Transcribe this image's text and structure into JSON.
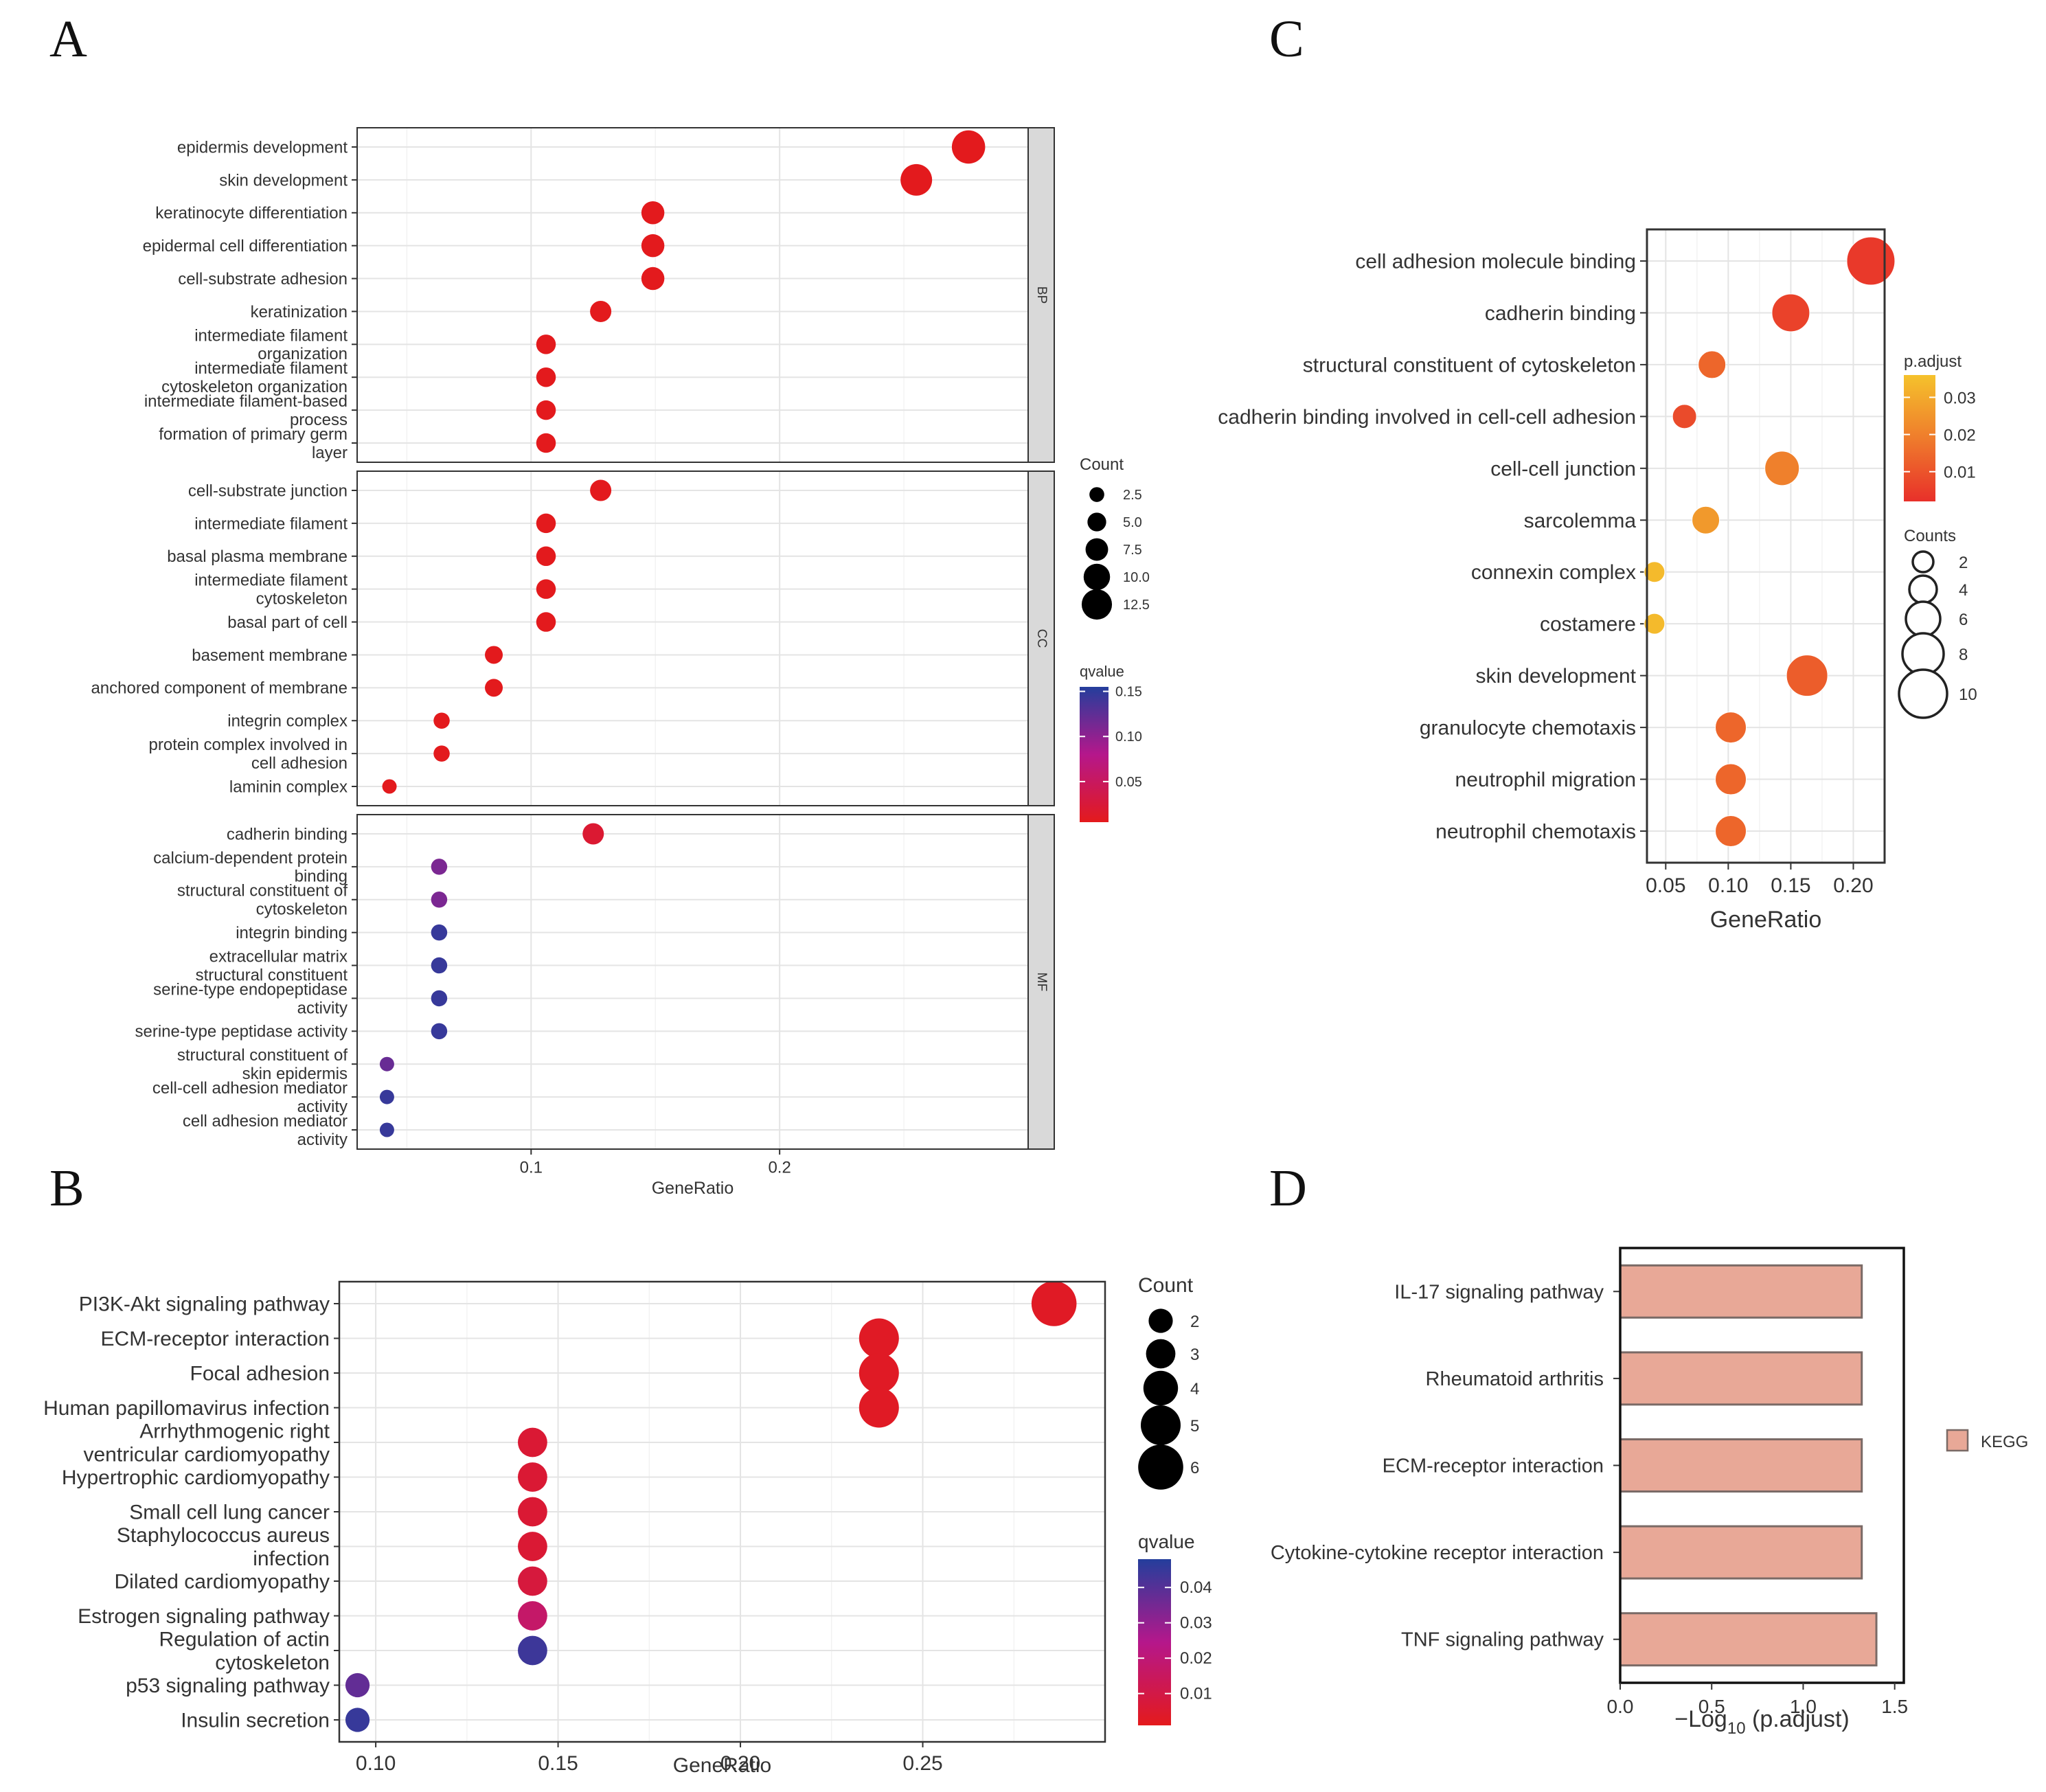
{
  "panels": {
    "A": "A",
    "B": "B",
    "C": "C",
    "D": "D"
  },
  "chart_data": [
    {
      "id": "A",
      "type": "scatter",
      "subtype": "dotplot-faceted",
      "xlabel": "GeneRatio",
      "xlim": [
        0.03,
        0.3
      ],
      "xticks": [
        "0.1",
        "0.2"
      ],
      "xtick_values": [
        0.1,
        0.2
      ],
      "facets": [
        {
          "name": "BP",
          "items": [
            {
              "term": [
                "epidermis development"
              ],
              "x": 0.276,
              "count": 13,
              "q": 0.006
            },
            {
              "term": [
                "skin development"
              ],
              "x": 0.255,
              "count": 12,
              "q": 0.006
            },
            {
              "term": [
                "keratinocyte differentiation"
              ],
              "x": 0.149,
              "count": 7,
              "q": 0.006
            },
            {
              "term": [
                "epidermal cell differentiation"
              ],
              "x": 0.149,
              "count": 7,
              "q": 0.006
            },
            {
              "term": [
                "cell-substrate adhesion"
              ],
              "x": 0.149,
              "count": 7,
              "q": 0.006
            },
            {
              "term": [
                "keratinization"
              ],
              "x": 0.128,
              "count": 6,
              "q": 0.006
            },
            {
              "term": [
                "intermediate filament",
                "organization"
              ],
              "x": 0.106,
              "count": 5,
              "q": 0.006
            },
            {
              "term": [
                "intermediate filament",
                "cytoskeleton organization"
              ],
              "x": 0.106,
              "count": 5,
              "q": 0.006
            },
            {
              "term": [
                "intermediate filament-based",
                "process"
              ],
              "x": 0.106,
              "count": 5,
              "q": 0.006
            },
            {
              "term": [
                "formation of primary germ",
                "layer"
              ],
              "x": 0.106,
              "count": 5,
              "q": 0.006
            }
          ]
        },
        {
          "name": "CC",
          "items": [
            {
              "term": [
                "cell-substrate junction"
              ],
              "x": 0.128,
              "count": 6,
              "q": 0.006
            },
            {
              "term": [
                "intermediate filament"
              ],
              "x": 0.106,
              "count": 5,
              "q": 0.006
            },
            {
              "term": [
                "basal plasma membrane"
              ],
              "x": 0.106,
              "count": 5,
              "q": 0.006
            },
            {
              "term": [
                "intermediate filament",
                "cytoskeleton"
              ],
              "x": 0.106,
              "count": 5,
              "q": 0.006
            },
            {
              "term": [
                "basal part of cell"
              ],
              "x": 0.106,
              "count": 5,
              "q": 0.006
            },
            {
              "term": [
                "basement membrane"
              ],
              "x": 0.085,
              "count": 4,
              "q": 0.006
            },
            {
              "term": [
                "anchored component of membrane"
              ],
              "x": 0.085,
              "count": 4,
              "q": 0.006
            },
            {
              "term": [
                "integrin complex"
              ],
              "x": 0.064,
              "count": 3,
              "q": 0.006
            },
            {
              "term": [
                "protein complex involved in",
                "cell adhesion"
              ],
              "x": 0.064,
              "count": 3,
              "q": 0.006
            },
            {
              "term": [
                "laminin complex"
              ],
              "x": 0.043,
              "count": 2,
              "q": 0.006
            }
          ]
        },
        {
          "name": "MF",
          "items": [
            {
              "term": [
                "cadherin binding"
              ],
              "x": 0.125,
              "count": 6,
              "q": 0.02
            },
            {
              "term": [
                "calcium-dependent protein",
                "binding"
              ],
              "x": 0.063,
              "count": 3,
              "q": 0.11
            },
            {
              "term": [
                "structural constituent of",
                "cytoskeleton"
              ],
              "x": 0.063,
              "count": 3,
              "q": 0.11
            },
            {
              "term": [
                "integrin binding"
              ],
              "x": 0.063,
              "count": 3,
              "q": 0.145
            },
            {
              "term": [
                "extracellular matrix",
                "structural constituent"
              ],
              "x": 0.063,
              "count": 3,
              "q": 0.145
            },
            {
              "term": [
                "serine-type endopeptidase",
                "activity"
              ],
              "x": 0.063,
              "count": 3,
              "q": 0.145
            },
            {
              "term": [
                "serine-type peptidase activity"
              ],
              "x": 0.063,
              "count": 3,
              "q": 0.145
            },
            {
              "term": [
                "structural constituent of",
                "skin epidermis"
              ],
              "x": 0.042,
              "count": 2,
              "q": 0.12
            },
            {
              "term": [
                "cell-cell adhesion mediator",
                "activity"
              ],
              "x": 0.042,
              "count": 2,
              "q": 0.145
            },
            {
              "term": [
                "cell adhesion mediator",
                "activity"
              ],
              "x": 0.042,
              "count": 2,
              "q": 0.145
            }
          ]
        }
      ],
      "legend_count": {
        "title": "Count",
        "labels": [
          "2.5",
          "5.0",
          "7.5",
          "10.0",
          "12.5"
        ],
        "values": [
          2.5,
          5.0,
          7.5,
          10.0,
          12.5
        ]
      },
      "legend_color": {
        "title": "qvalue",
        "labels": [
          "0.15",
          "0.10",
          "0.05"
        ],
        "values": [
          0.15,
          0.1,
          0.05
        ],
        "range": [
          0.005,
          0.155
        ]
      }
    },
    {
      "id": "B",
      "type": "scatter",
      "subtype": "dotplot",
      "xlabel": "GeneRatio",
      "xlim": [
        0.09,
        0.3
      ],
      "xticks": [
        "0.10",
        "0.15",
        "0.20",
        "0.25"
      ],
      "xtick_values": [
        0.1,
        0.15,
        0.2,
        0.25
      ],
      "items": [
        {
          "term": [
            "PI3K-Akt signaling pathway"
          ],
          "x": 0.286,
          "count": 6,
          "q": 0.003
        },
        {
          "term": [
            "ECM-receptor interaction"
          ],
          "x": 0.238,
          "count": 5,
          "q": 0.003
        },
        {
          "term": [
            "Focal adhesion"
          ],
          "x": 0.238,
          "count": 5,
          "q": 0.003
        },
        {
          "term": [
            "Human papillomavirus infection"
          ],
          "x": 0.238,
          "count": 5,
          "q": 0.003
        },
        {
          "term": [
            "Arrhythmogenic right",
            "ventricular cardiomyopathy"
          ],
          "x": 0.143,
          "count": 3,
          "q": 0.006
        },
        {
          "term": [
            "Hypertrophic cardiomyopathy"
          ],
          "x": 0.143,
          "count": 3,
          "q": 0.006
        },
        {
          "term": [
            "Small cell lung cancer"
          ],
          "x": 0.143,
          "count": 3,
          "q": 0.006
        },
        {
          "term": [
            "Staphylococcus aureus",
            "infection"
          ],
          "x": 0.143,
          "count": 3,
          "q": 0.006
        },
        {
          "term": [
            "Dilated cardiomyopathy"
          ],
          "x": 0.143,
          "count": 3,
          "q": 0.008
        },
        {
          "term": [
            "Estrogen signaling pathway"
          ],
          "x": 0.143,
          "count": 3,
          "q": 0.017
        },
        {
          "term": [
            "Regulation of actin",
            "cytoskeleton"
          ],
          "x": 0.143,
          "count": 3,
          "q": 0.044
        },
        {
          "term": [
            "p53 signaling pathway"
          ],
          "x": 0.095,
          "count": 2,
          "q": 0.038
        },
        {
          "term": [
            "Insulin secretion"
          ],
          "x": 0.095,
          "count": 2,
          "q": 0.045
        }
      ],
      "legend_count": {
        "title": "Count",
        "labels": [
          "2",
          "3",
          "4",
          "5",
          "6"
        ],
        "values": [
          2,
          3,
          4,
          5,
          6
        ]
      },
      "legend_color": {
        "title": "qvalue",
        "labels": [
          "0.04",
          "0.03",
          "0.02",
          "0.01"
        ],
        "values": [
          0.04,
          0.03,
          0.02,
          0.01
        ],
        "range": [
          0.001,
          0.048
        ]
      }
    },
    {
      "id": "C",
      "type": "scatter",
      "subtype": "dotplot",
      "xlabel": "GeneRatio",
      "xlim": [
        0.035,
        0.225
      ],
      "xticks": [
        "0.05",
        "0.10",
        "0.15",
        "0.20"
      ],
      "xtick_values": [
        0.05,
        0.1,
        0.15,
        0.2
      ],
      "items": [
        {
          "term": [
            "cell adhesion molecule binding"
          ],
          "x": 0.214,
          "count": 10,
          "p": 0.004
        },
        {
          "term": [
            "cadherin binding"
          ],
          "x": 0.15,
          "count": 7,
          "p": 0.006
        },
        {
          "term": [
            "structural constituent of cytoskeleton"
          ],
          "x": 0.087,
          "count": 4,
          "p": 0.014
        },
        {
          "term": [
            "cadherin binding involved in cell-cell adhesion"
          ],
          "x": 0.065,
          "count": 3,
          "p": 0.008
        },
        {
          "term": [
            "cell-cell junction"
          ],
          "x": 0.143,
          "count": 6,
          "p": 0.02
        },
        {
          "term": [
            "sarcolemma"
          ],
          "x": 0.082,
          "count": 4,
          "p": 0.026
        },
        {
          "term": [
            "connexin complex"
          ],
          "x": 0.041,
          "count": 2,
          "p": 0.034
        },
        {
          "term": [
            "costamere"
          ],
          "x": 0.041,
          "count": 2,
          "p": 0.034
        },
        {
          "term": [
            "skin development"
          ],
          "x": 0.163,
          "count": 8,
          "p": 0.012
        },
        {
          "term": [
            "granulocyte chemotaxis"
          ],
          "x": 0.102,
          "count": 5,
          "p": 0.014
        },
        {
          "term": [
            "neutrophil migration"
          ],
          "x": 0.102,
          "count": 5,
          "p": 0.014
        },
        {
          "term": [
            "neutrophil chemotaxis"
          ],
          "x": 0.102,
          "count": 5,
          "p": 0.014
        }
      ],
      "legend_color": {
        "title": "p.adjust",
        "labels": [
          "0.03",
          "0.02",
          "0.01"
        ],
        "values": [
          0.03,
          0.02,
          0.01
        ],
        "range": [
          0.002,
          0.036
        ]
      },
      "legend_count": {
        "title": "Counts",
        "labels": [
          "2",
          "4",
          "6",
          "8",
          "10"
        ],
        "values": [
          2,
          4,
          6,
          8,
          10
        ]
      }
    },
    {
      "id": "D",
      "type": "bar",
      "orientation": "horizontal",
      "categories": [
        "IL-17 signaling pathway",
        "Rheumatoid arthritis",
        "ECM-receptor interaction",
        "Cytokine-cytokine receptor interaction",
        "TNF signaling pathway"
      ],
      "values": [
        1.32,
        1.32,
        1.32,
        1.32,
        1.4
      ],
      "xlim": [
        0,
        1.55
      ],
      "xticks": [
        "0.0",
        "0.5",
        "1.0",
        "1.5"
      ],
      "xtick_values": [
        0,
        0.5,
        1.0,
        1.5
      ],
      "xlabel_parts": {
        "pre": "−Log",
        "sub": "10",
        "post": " (p.adjust)"
      },
      "legend": {
        "label": "KEGG"
      },
      "bar_color": "#e8a897",
      "bar_edge": "#7a6a66"
    }
  ]
}
